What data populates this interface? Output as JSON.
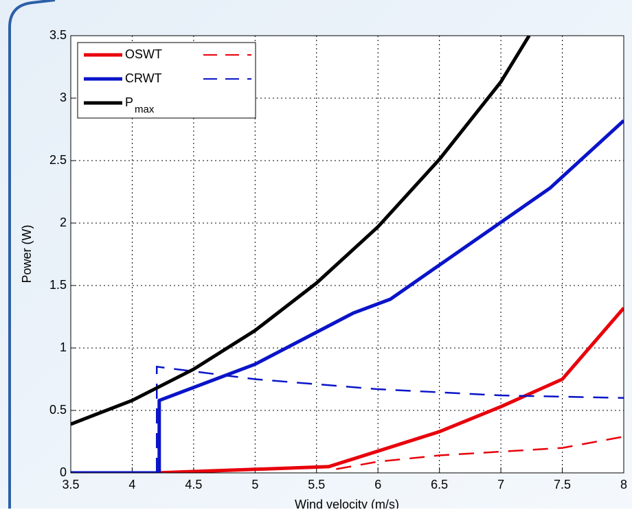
{
  "chart_data": {
    "type": "line",
    "xlabel": "Wind velocity (m/s)",
    "ylabel": "Power (W)",
    "xlim": [
      3.5,
      8
    ],
    "ylim": [
      0,
      3.5
    ],
    "xticks": [
      3.5,
      4,
      4.5,
      5,
      5.5,
      6,
      6.5,
      7,
      7.5,
      8
    ],
    "yticks": [
      0,
      0.5,
      1,
      1.5,
      2,
      2.5,
      3,
      3.5
    ],
    "grid": true,
    "legend": "upper left",
    "series": [
      {
        "name": "OSWT",
        "color": "#e8000b",
        "x": [
          3.5,
          4.2,
          5.6,
          6.5,
          7,
          7.5,
          8
        ],
        "values": [
          0,
          0,
          0.05,
          0.33,
          0.53,
          0.75,
          1.32
        ],
        "dashed": {
          "x": [
            5.66,
            6,
            6.5,
            7,
            7.5,
            8
          ],
          "values": [
            0.03,
            0.09,
            0.14,
            0.17,
            0.2,
            0.29
          ]
        }
      },
      {
        "name": "CRWT",
        "color": "#0a14c8",
        "x": [
          3.5,
          4.22,
          4.22,
          5,
          5.8,
          6.1,
          7.4,
          8
        ],
        "values": [
          0,
          0,
          0.58,
          0.87,
          1.28,
          1.39,
          2.28,
          2.82
        ],
        "dashed": {
          "x": [
            4.2,
            4.2,
            5,
            6,
            7,
            8
          ],
          "values": [
            0,
            0.85,
            0.75,
            0.67,
            0.62,
            0.6
          ]
        }
      },
      {
        "name": "P",
        "subscript": "max",
        "color": "#000000",
        "x": [
          3.5,
          4,
          4.5,
          5,
          5.5,
          6,
          6.5,
          7,
          7.23
        ],
        "values": [
          0.39,
          0.58,
          0.83,
          1.14,
          1.52,
          1.97,
          2.51,
          3.13,
          3.5
        ]
      }
    ]
  }
}
